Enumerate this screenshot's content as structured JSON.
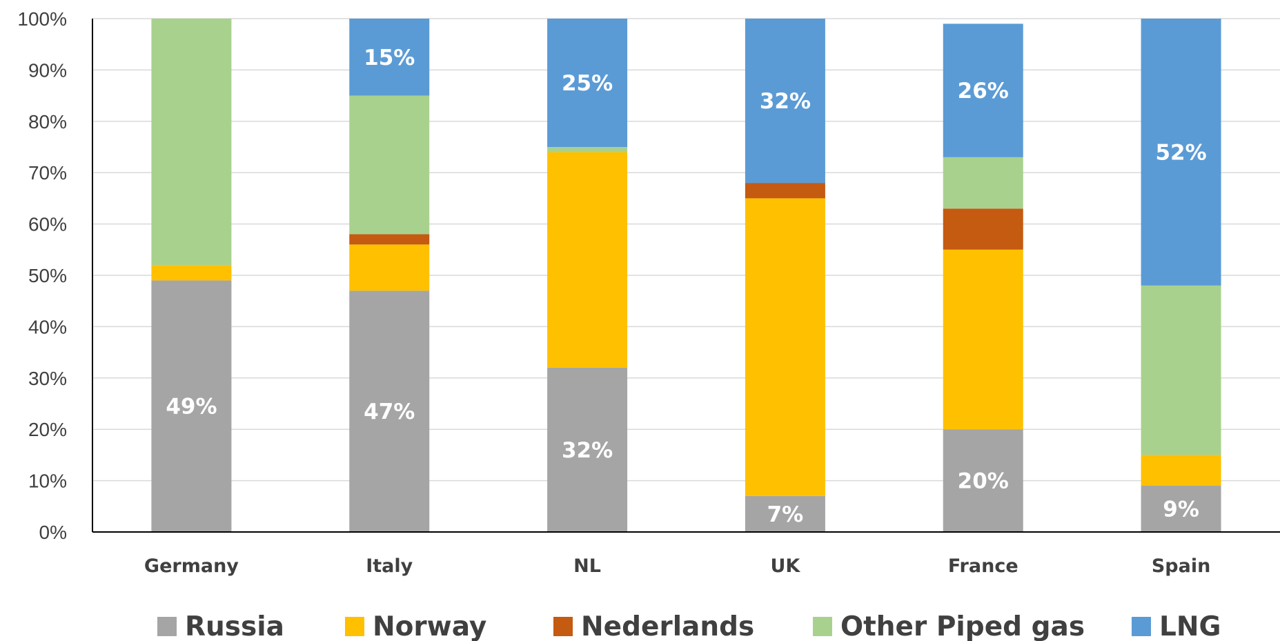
{
  "chart_data": {
    "type": "bar",
    "stacked": true,
    "percent_stacked": true,
    "categories": [
      "Germany",
      "Italy",
      "NL",
      "UK",
      "France",
      "Spain"
    ],
    "series": [
      {
        "name": "Russia",
        "color": "#a5a5a5",
        "values": [
          49,
          47,
          32,
          7,
          20,
          9
        ]
      },
      {
        "name": "Norway",
        "color": "#ffc000",
        "values": [
          3,
          9,
          42,
          58,
          35,
          6
        ]
      },
      {
        "name": "Nederlands",
        "color": "#c55a11",
        "values": [
          0,
          2,
          0,
          3,
          8,
          0
        ]
      },
      {
        "name": "Other Piped gas",
        "color": "#a9d18e",
        "values": [
          48,
          27,
          1,
          0,
          10,
          33
        ]
      },
      {
        "name": "LNG",
        "color": "#5b9bd5",
        "values": [
          0,
          15,
          25,
          32,
          26,
          52
        ]
      }
    ],
    "data_labels": [
      {
        "series": "Russia",
        "category": "Germany",
        "text": "49%"
      },
      {
        "series": "Russia",
        "category": "Italy",
        "text": "47%"
      },
      {
        "series": "Russia",
        "category": "NL",
        "text": "32%"
      },
      {
        "series": "Russia",
        "category": "UK",
        "text": "7%"
      },
      {
        "series": "Russia",
        "category": "France",
        "text": "20%"
      },
      {
        "series": "Russia",
        "category": "Spain",
        "text": "9%"
      },
      {
        "series": "LNG",
        "category": "Italy",
        "text": "15%"
      },
      {
        "series": "LNG",
        "category": "NL",
        "text": "25%"
      },
      {
        "series": "LNG",
        "category": "UK",
        "text": "32%"
      },
      {
        "series": "LNG",
        "category": "France",
        "text": "26%"
      },
      {
        "series": "LNG",
        "category": "Spain",
        "text": "52%"
      }
    ],
    "yticks": [
      "0%",
      "10%",
      "20%",
      "30%",
      "40%",
      "50%",
      "60%",
      "70%",
      "80%",
      "90%",
      "100%"
    ],
    "ylim": [
      0,
      100
    ],
    "grid": true,
    "legend_position": "bottom",
    "title": "",
    "xlabel": "",
    "ylabel": ""
  }
}
